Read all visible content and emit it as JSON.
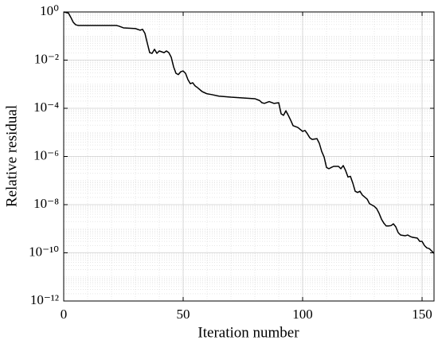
{
  "chart_data": {
    "type": "line",
    "xlabel": "Iteration number",
    "ylabel": "Relative residual",
    "yscale": "log",
    "grid": true,
    "minor_grid": true,
    "color": "#000000",
    "xlim": [
      0,
      155
    ],
    "xticks": [
      0,
      50,
      100,
      150
    ],
    "ylim": [
      1e-12,
      1
    ],
    "yticks": [
      {
        "value": 1,
        "label": "10⁰"
      },
      {
        "value": 0.01,
        "label": "10⁻²"
      },
      {
        "value": 0.0001,
        "label": "10⁻⁴"
      },
      {
        "value": 1e-06,
        "label": "10⁻⁶"
      },
      {
        "value": 1e-08,
        "label": "10⁻⁸"
      },
      {
        "value": 1e-10,
        "label": "10⁻¹⁰"
      },
      {
        "value": 1e-12,
        "label": "10⁻¹²"
      }
    ],
    "x": [
      0,
      2,
      3,
      4,
      5,
      6,
      15,
      22,
      23,
      25,
      30,
      32,
      33,
      34,
      35,
      36,
      37,
      38,
      39,
      40,
      42,
      43,
      44,
      45,
      46,
      47,
      48,
      49,
      50,
      51,
      52,
      53,
      54,
      55,
      56,
      58,
      60,
      62,
      65,
      70,
      75,
      80,
      82,
      83,
      84,
      86,
      88,
      90,
      91,
      92,
      93,
      94,
      95,
      96,
      98,
      100,
      101,
      102,
      103,
      104,
      106,
      107,
      108,
      109,
      110,
      111,
      112,
      113,
      115,
      116,
      117,
      118,
      119,
      120,
      121,
      122,
      123,
      124,
      125,
      127,
      128,
      130,
      131,
      132,
      133,
      134,
      135,
      136,
      137,
      138,
      139,
      140,
      141,
      143,
      144,
      145,
      146,
      148,
      149,
      150,
      151,
      152,
      153,
      154,
      155
    ],
    "values": [
      1,
      0.891,
      0.589,
      0.372,
      0.295,
      0.275,
      0.275,
      0.275,
      0.26,
      0.219,
      0.204,
      0.174,
      0.19,
      0.129,
      0.0501,
      0.0204,
      0.0191,
      0.0282,
      0.0191,
      0.024,
      0.0204,
      0.024,
      0.0204,
      0.0132,
      0.00525,
      0.00282,
      0.00251,
      0.00331,
      0.00355,
      0.00282,
      0.00155,
      0.00105,
      0.00115,
      0.00085,
      0.00072,
      0.00049,
      0.0004,
      0.00037,
      0.00032,
      0.00029,
      0.00027,
      0.00025,
      0.00021,
      0.00017,
      0.00016,
      0.00019,
      0.00016,
      0.00017,
      5.9e-05,
      5.1e-05,
      7.9e-05,
      5.1e-05,
      3.2e-05,
      1.9e-05,
      1.6e-05,
      1.1e-05,
      1.2e-05,
      8.7e-06,
      6e-06,
      5.1e-06,
      5.5e-06,
      3.5e-06,
      1.6e-06,
      9.5e-07,
      3.5e-07,
      3.1e-07,
      3.5e-07,
      3.9e-07,
      3.9e-07,
      3.1e-07,
      4.2e-07,
      2.6e-07,
      1.4e-07,
      1.5e-07,
      7.9e-08,
      3.6e-08,
      3.2e-08,
      3.6e-08,
      2.5e-08,
      1.7e-08,
      1.1e-08,
      8.5e-09,
      6.8e-09,
      4.4e-09,
      2.5e-09,
      1.7e-09,
      1.3e-09,
      1.3e-09,
      1.35e-09,
      1.6e-09,
      1.2e-09,
      6.9e-10,
      5.5e-10,
      5.1e-10,
      5.5e-10,
      4.8e-10,
      4.4e-10,
      4.1e-10,
      3e-10,
      3e-10,
      2e-10,
      1.6e-10,
      1.5e-10,
      1.2e-10,
      9.5e-11
    ]
  }
}
